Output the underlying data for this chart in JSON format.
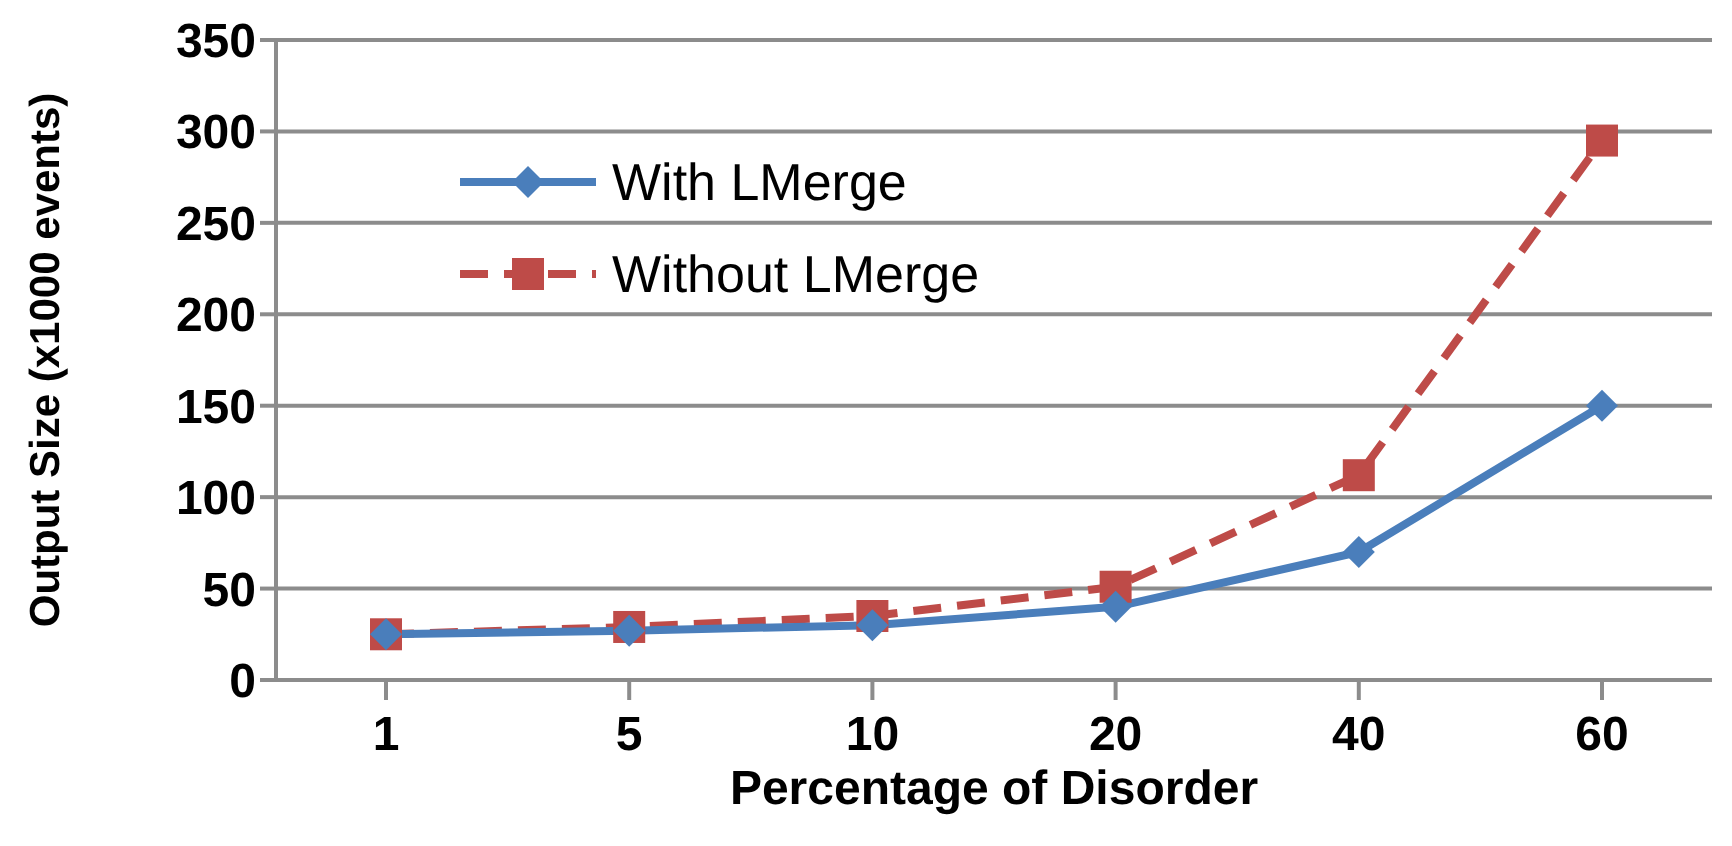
{
  "chart_data": {
    "type": "line",
    "xlabel": "Percentage of Disorder",
    "ylabel": "Output Size (x1000 events)",
    "categories": [
      "1",
      "5",
      "10",
      "20",
      "40",
      "60"
    ],
    "series": [
      {
        "name": "With LMerge",
        "color": "#4a7ebb",
        "values": [
          25,
          27,
          30,
          40,
          70,
          150
        ],
        "marker": "diamond",
        "line_style": "solid"
      },
      {
        "name": "Without LMerge",
        "color": "#be4b48",
        "values": [
          25,
          29,
          35,
          51,
          112,
          295
        ],
        "marker": "square",
        "line_style": "dashed"
      }
    ],
    "ylim": [
      0,
      350
    ],
    "yticks": [
      0,
      50,
      100,
      150,
      200,
      250,
      300,
      350
    ],
    "grid": "y",
    "legend": "top left"
  }
}
